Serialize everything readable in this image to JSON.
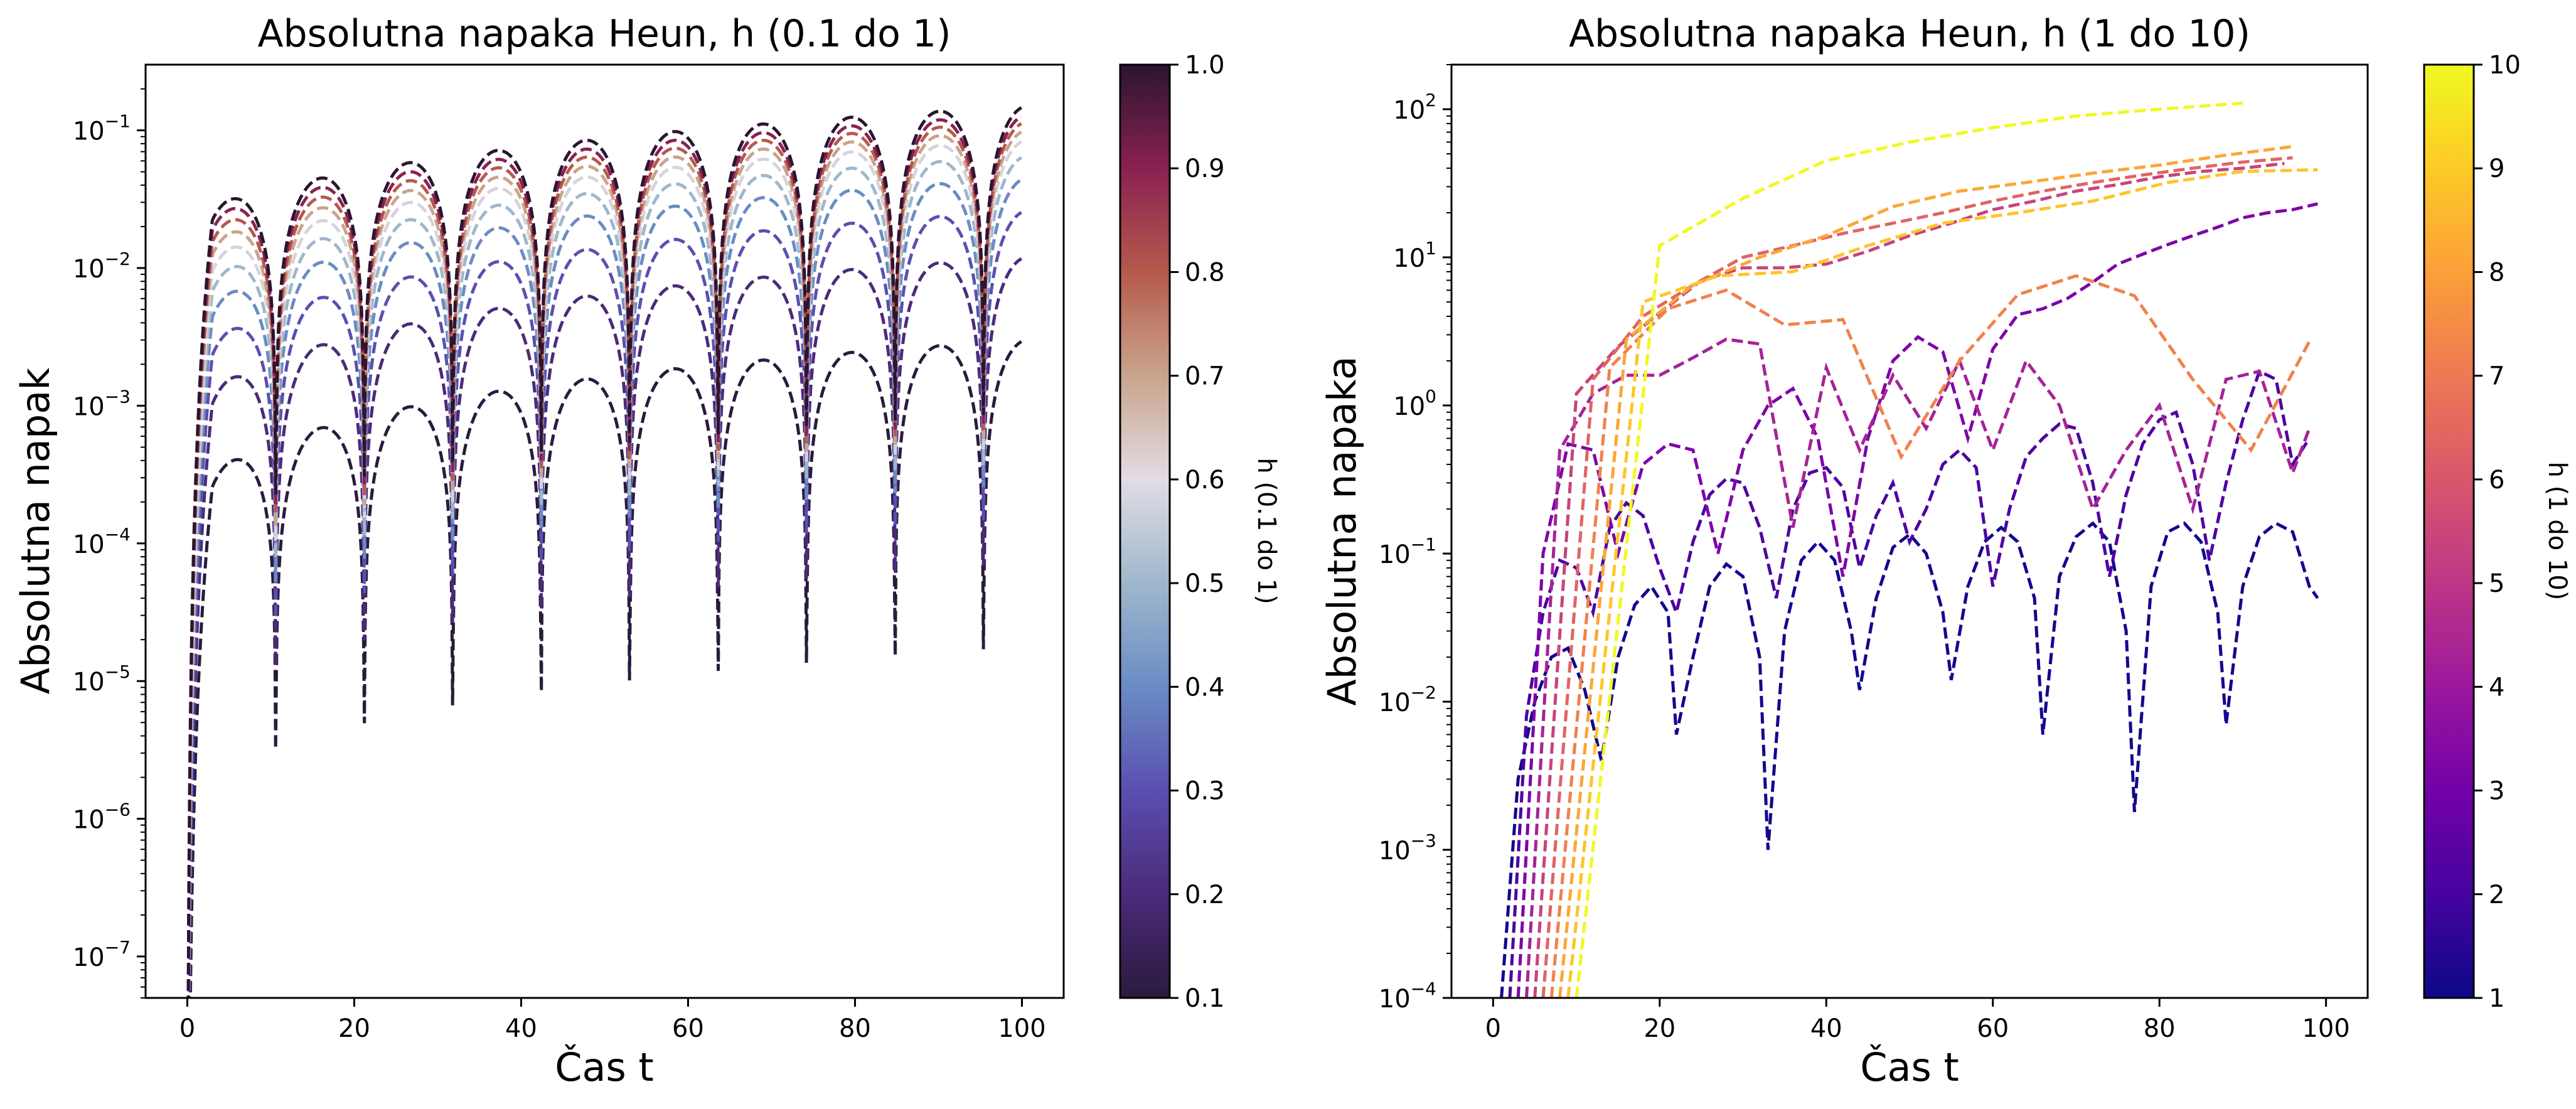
{
  "chart_data": [
    {
      "type": "line",
      "title": "Absolutna napaka Heun, h (0.1 do 1)",
      "xlabel": "Čas t",
      "ylabel": "Absolutna napak",
      "yscale": "log",
      "xlim": [
        -5,
        105
      ],
      "ylim": [
        5e-08,
        0.3
      ],
      "xticks": [
        "0",
        "20",
        "40",
        "60",
        "80",
        "100"
      ],
      "yticks": [
        {
          "base": "10",
          "exp": "−7",
          "value": 1e-07
        },
        {
          "base": "10",
          "exp": "−6",
          "value": 1e-06
        },
        {
          "base": "10",
          "exp": "−5",
          "value": 1e-05
        },
        {
          "base": "10",
          "exp": "−4",
          "value": 0.0001
        },
        {
          "base": "10",
          "exp": "−3",
          "value": 0.001
        },
        {
          "base": "10",
          "exp": "−2",
          "value": 0.01
        },
        {
          "base": "10",
          "exp": "−1",
          "value": 0.1
        }
      ],
      "line_style": "dashed",
      "colormap": "twilight_shifted",
      "oscillation_period": 10.6,
      "series": [
        {
          "h": 0.1,
          "peak_start": 0.00025,
          "peak_end": 0.003,
          "color": "#2a1b3d"
        },
        {
          "h": 0.2,
          "peak_start": 0.001,
          "peak_end": 0.012,
          "color": "#4b2a7a"
        },
        {
          "h": 0.3,
          "peak_start": 0.0023,
          "peak_end": 0.026,
          "color": "#5a4fb0"
        },
        {
          "h": 0.4,
          "peak_start": 0.0045,
          "peak_end": 0.045,
          "color": "#6a8cc4"
        },
        {
          "h": 0.5,
          "peak_start": 0.007,
          "peak_end": 0.065,
          "color": "#9fb7cc"
        },
        {
          "h": 0.6,
          "peak_start": 0.01,
          "peak_end": 0.085,
          "color": "#d7d3dc"
        },
        {
          "h": 0.7,
          "peak_start": 0.0135,
          "peak_end": 0.1,
          "color": "#c9a48c"
        },
        {
          "h": 0.8,
          "peak_start": 0.017,
          "peak_end": 0.115,
          "color": "#b55a4c"
        },
        {
          "h": 0.9,
          "peak_start": 0.021,
          "peak_end": 0.13,
          "color": "#8a2151"
        },
        {
          "h": 1.0,
          "peak_start": 0.025,
          "peak_end": 0.15,
          "color": "#2b1530"
        }
      ],
      "colorbar": {
        "label": "h (0.1 do 1)",
        "range": [
          0.1,
          1.0
        ],
        "ticks": [
          "0.1",
          "0.2",
          "0.3",
          "0.4",
          "0.5",
          "0.6",
          "0.7",
          "0.8",
          "0.9",
          "1.0"
        ],
        "stops": [
          "#2a1b3d",
          "#4b2a7a",
          "#5a4fb0",
          "#6a8cc4",
          "#9fb7cc",
          "#e2dce4",
          "#c9a48c",
          "#b55a4c",
          "#8a2151",
          "#2b1530"
        ]
      }
    },
    {
      "type": "line",
      "title": "Absolutna napaka Heun, h (1 do 10)",
      "xlabel": "Čas t",
      "ylabel": "Absolutna napaka",
      "yscale": "log",
      "xlim": [
        -5,
        105
      ],
      "ylim": [
        0.0001,
        200
      ],
      "xticks": [
        "0",
        "20",
        "40",
        "60",
        "80",
        "100"
      ],
      "yticks": [
        {
          "base": "10",
          "exp": "−4",
          "value": 0.0001
        },
        {
          "base": "10",
          "exp": "−3",
          "value": 0.001
        },
        {
          "base": "10",
          "exp": "−2",
          "value": 0.01
        },
        {
          "base": "10",
          "exp": "−1",
          "value": 0.1
        },
        {
          "base": "10",
          "exp": "0",
          "value": 1
        },
        {
          "base": "10",
          "exp": "1",
          "value": 10
        },
        {
          "base": "10",
          "exp": "2",
          "value": 100
        }
      ],
      "line_style": "dashed",
      "colormap": "plasma",
      "series": [
        {
          "h": 1,
          "color": "#14078f",
          "x": [
            1,
            3,
            5,
            7,
            9,
            11,
            13,
            15,
            17,
            19,
            21,
            22,
            24,
            26,
            28,
            30,
            32,
            33,
            35,
            37,
            39,
            41,
            43,
            44,
            46,
            48,
            50,
            52,
            54,
            55,
            57,
            59,
            61,
            63,
            65,
            66,
            68,
            70,
            72,
            74,
            76,
            77,
            79,
            81,
            83,
            85,
            87,
            88,
            90,
            92,
            94,
            96,
            98,
            99
          ],
          "y": [
            0.0001,
            0.003,
            0.01,
            0.02,
            0.023,
            0.012,
            0.004,
            0.02,
            0.045,
            0.06,
            0.04,
            0.006,
            0.02,
            0.06,
            0.085,
            0.07,
            0.02,
            0.001,
            0.03,
            0.09,
            0.12,
            0.09,
            0.03,
            0.012,
            0.05,
            0.11,
            0.135,
            0.1,
            0.04,
            0.014,
            0.06,
            0.12,
            0.15,
            0.12,
            0.05,
            0.006,
            0.07,
            0.13,
            0.16,
            0.12,
            0.03,
            0.0018,
            0.06,
            0.14,
            0.16,
            0.12,
            0.04,
            0.007,
            0.06,
            0.13,
            0.16,
            0.14,
            0.06,
            0.05
          ]
        },
        {
          "h": 2,
          "color": "#4d02a2",
          "x": [
            2,
            4,
            6,
            8,
            10,
            12,
            14,
            16,
            18,
            20,
            22,
            24,
            26,
            28,
            30,
            32,
            34,
            36,
            38,
            40,
            42,
            44,
            46,
            48,
            50,
            52,
            54,
            56,
            58,
            60,
            62,
            64,
            66,
            68,
            70,
            72,
            74,
            76,
            78,
            80,
            82,
            84,
            86,
            88,
            90,
            92,
            94,
            96,
            98
          ],
          "y": [
            0.0001,
            0.008,
            0.04,
            0.09,
            0.08,
            0.04,
            0.15,
            0.22,
            0.18,
            0.08,
            0.04,
            0.12,
            0.25,
            0.32,
            0.3,
            0.15,
            0.05,
            0.2,
            0.35,
            0.38,
            0.28,
            0.08,
            0.18,
            0.3,
            0.12,
            0.2,
            0.4,
            0.5,
            0.38,
            0.06,
            0.2,
            0.45,
            0.6,
            0.75,
            0.7,
            0.3,
            0.07,
            0.25,
            0.55,
            0.8,
            0.9,
            0.4,
            0.09,
            0.3,
            0.8,
            1.7,
            1.5,
            0.4,
            0.6
          ]
        },
        {
          "h": 3,
          "color": "#7e03a8",
          "x": [
            3,
            6,
            9,
            12,
            15,
            18,
            21,
            24,
            27,
            30,
            33,
            36,
            39,
            42,
            45,
            48,
            51,
            54,
            57,
            60,
            63,
            66,
            69,
            72,
            75,
            78,
            81,
            84,
            87,
            90,
            93,
            96,
            99
          ],
          "y": [
            0.0001,
            0.1,
            0.55,
            0.5,
            0.1,
            0.4,
            0.55,
            0.5,
            0.1,
            0.5,
            1.0,
            1.3,
            0.6,
            0.07,
            0.6,
            2.0,
            2.9,
            2.3,
            0.6,
            2.4,
            4.1,
            4.5,
            5.3,
            6.8,
            9.0,
            10.5,
            12.2,
            14.0,
            16.0,
            18.5,
            20.0,
            21.0,
            23.0
          ]
        },
        {
          "h": 4,
          "color": "#a62298",
          "x": [
            4,
            8,
            12,
            16,
            20,
            24,
            28,
            32,
            36,
            40,
            44,
            48,
            52,
            56,
            60,
            64,
            68,
            72,
            76,
            80,
            84,
            88,
            92,
            96,
            98
          ],
          "y": [
            0.0001,
            0.5,
            1.2,
            1.6,
            1.6,
            2.1,
            2.8,
            2.6,
            0.15,
            1.8,
            0.5,
            1.6,
            0.7,
            2.0,
            0.5,
            2.0,
            1.0,
            0.2,
            0.5,
            1.0,
            0.2,
            1.5,
            1.7,
            0.35,
            0.7
          ]
        },
        {
          "h": 5,
          "color": "#c8437b",
          "x": [
            5,
            10,
            15,
            20,
            25,
            30,
            35,
            40,
            45,
            50,
            55,
            60,
            65,
            70,
            75,
            80,
            85,
            90,
            95
          ],
          "y": [
            0.0001,
            1.2,
            2.5,
            4.2,
            7.0,
            8.5,
            8.5,
            9.0,
            11.0,
            14.0,
            17.0,
            21.0,
            24.0,
            28.0,
            31.0,
            35.0,
            38.0,
            40.0,
            43.0
          ]
        },
        {
          "h": 6,
          "color": "#e06461",
          "x": [
            6,
            12,
            18,
            24,
            30,
            36,
            42,
            48,
            54,
            60,
            66,
            72,
            78,
            84,
            90,
            96
          ],
          "y": [
            0.0001,
            1.5,
            4.0,
            6.5,
            10.0,
            12.0,
            14.5,
            17.0,
            20.0,
            24.0,
            28.0,
            32.0,
            36.0,
            40.0,
            44.0,
            47.0
          ]
        },
        {
          "h": 7,
          "color": "#f1814c",
          "x": [
            7,
            14,
            21,
            28,
            35,
            42,
            49,
            56,
            63,
            70,
            77,
            84,
            91,
            98
          ],
          "y": [
            0.0001,
            1.8,
            4.5,
            6.0,
            3.5,
            3.8,
            0.45,
            2.0,
            5.6,
            7.5,
            5.5,
            1.5,
            0.5,
            2.7
          ]
        },
        {
          "h": 8,
          "color": "#fca636",
          "x": [
            8,
            16,
            24,
            32,
            40,
            48,
            56,
            64,
            72,
            80,
            88,
            96
          ],
          "y": [
            0.0001,
            2.8,
            6.5,
            10.0,
            14.0,
            22.0,
            28.0,
            32.0,
            37.0,
            42.0,
            49.0,
            56.0
          ]
        },
        {
          "h": 9,
          "color": "#fec529",
          "x": [
            9,
            18,
            27,
            36,
            45,
            54,
            63,
            72,
            81,
            90,
            99
          ],
          "y": [
            0.0001,
            5.0,
            7.5,
            8.0,
            12.0,
            17.0,
            20.0,
            24.0,
            32.0,
            38.0,
            39.0
          ]
        },
        {
          "h": 10,
          "color": "#f0f921",
          "x": [
            10,
            20,
            30,
            40,
            50,
            60,
            70,
            80,
            90
          ],
          "y": [
            0.0001,
            12.0,
            25.0,
            45.0,
            60.0,
            75.0,
            90.0,
            100.0,
            110.0
          ]
        }
      ],
      "colorbar": {
        "label": "h (1 do 10)",
        "range": [
          1,
          10
        ],
        "ticks": [
          "1",
          "2",
          "3",
          "4",
          "5",
          "6",
          "7",
          "8",
          "9",
          "10"
        ],
        "stops": [
          "#0d0887",
          "#46039f",
          "#7201a8",
          "#9c179e",
          "#bd3786",
          "#d8576b",
          "#ed7953",
          "#fb9f3a",
          "#fdca26",
          "#f0f921"
        ]
      }
    }
  ]
}
